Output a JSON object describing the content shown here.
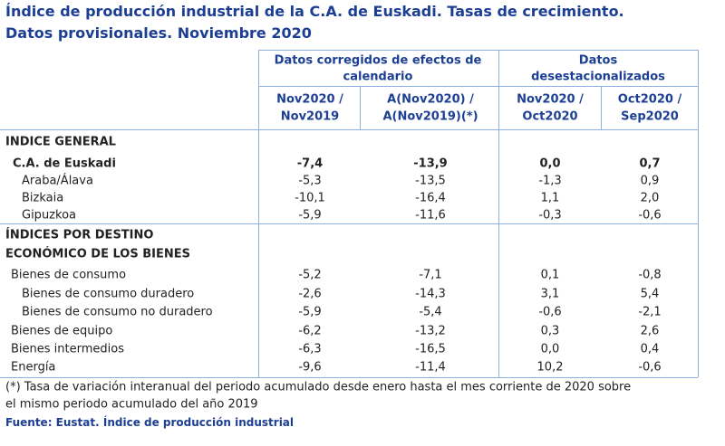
{
  "header": {
    "title_lines": [
      "Índice de producción industrial de la C.A. de Euskadi. Tasas de crecimiento.",
      "Datos provisionales. Noviembre 2020"
    ]
  },
  "table": {
    "group_headers": [
      [
        "Datos corregidos de efectos de",
        "calendario"
      ],
      [
        "Datos",
        "desestacionalizados"
      ]
    ],
    "column_headers": [
      [
        "Nov2020 /",
        "Nov2019"
      ],
      [
        "A(Nov2020) /",
        "A(Nov2019)(*)"
      ],
      [
        "Nov2020 /",
        "Oct2020"
      ],
      [
        "Oct2020 /",
        "Sep2020"
      ]
    ],
    "sections": [
      {
        "title_lines": [
          "INDICE GENERAL"
        ],
        "rows": [
          [
            "C.A. de Euskadi",
            "-7,4",
            "-13,9",
            "0,0",
            "0,7"
          ],
          [
            "Araba/Álava",
            "-5,3",
            "-13,5",
            "-1,3",
            "0,9"
          ],
          [
            "Bizkaia",
            "-10,1",
            "-16,4",
            "1,1",
            "2,0"
          ],
          [
            "Gipuzkoa",
            "-5,9",
            "-11,6",
            "-0,3",
            "-0,6"
          ]
        ]
      },
      {
        "title_lines": [
          "ÍNDICES POR DESTINO",
          "ECONÓMICO DE LOS BIENES"
        ],
        "rows": [
          [
            "Bienes de consumo",
            "-5,2",
            "-7,1",
            "0,1",
            "-0,8"
          ],
          [
            "Bienes de consumo duradero",
            "-2,6",
            "-14,3",
            "3,1",
            "5,4"
          ],
          [
            "Bienes de consumo no duradero",
            "-5,9",
            "-5,4",
            "-0,6",
            "-2,1"
          ],
          [
            "Bienes de equipo",
            "-6,2",
            "-13,2",
            "0,3",
            "2,6"
          ],
          [
            "Bienes intermedios",
            "-6,3",
            "-16,5",
            "0,0",
            "0,4"
          ],
          [
            "Energía",
            "-9,6",
            "-11,4",
            "10,2",
            "-0,6"
          ]
        ]
      }
    ]
  },
  "footnote": {
    "lines": [
      "(*) Tasa de variación interanual del periodo acumulado desde enero hasta el mes corriente de 2020 sobre",
      "el mismo periodo acumulado del año 2019"
    ]
  },
  "source": "Fuente: Eustat. Índice de producción industrial"
}
